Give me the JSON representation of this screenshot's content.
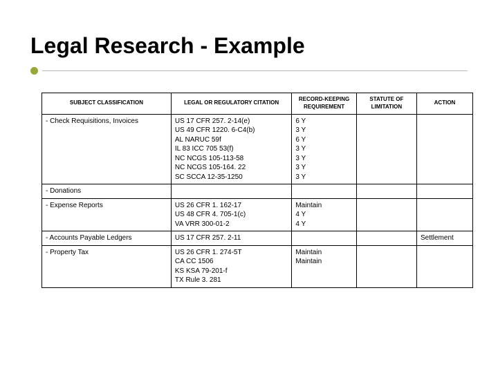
{
  "title": "Legal Research - Example",
  "accent_color": "#9aa83a",
  "underline_color": "#b8b8b8",
  "table": {
    "columns": [
      "SUBJECT CLASSIFICATION",
      "LEGAL OR REGULATORY CITATION",
      "RECORD-KEEPING REQUIREMENT",
      "STATUTE OF LIMITATION",
      "ACTION"
    ],
    "rows": [
      {
        "subject": "- Check Requisitions, Invoices",
        "citation": "US 17 CFR 257. 2-14(e)\nUS 49 CFR 1220. 6-C4(b)\nAL NARUC 59f\nIL 83 ICC 705 53(f)\nNC NCGS 105-113-58\nNC NCGS 105-164. 22\nSC SCCA 12-35-1250",
        "record": "6 Y\n3 Y\n6 Y\n3 Y\n3 Y\n3 Y\n3 Y",
        "statute": "",
        "action": ""
      },
      {
        "subject": "- Donations",
        "citation": "",
        "record": "",
        "statute": "",
        "action": ""
      },
      {
        "subject": "- Expense Reports",
        "citation": "US 26 CFR 1. 162-17\nUS 48 CFR 4. 705-1(c)\nVA VRR 300-01-2",
        "record": "Maintain\n4 Y\n4 Y",
        "statute": "",
        "action": ""
      },
      {
        "subject": "- Accounts Payable Ledgers",
        "citation": "US 17 CFR 257. 2-11",
        "record": "",
        "statute": "",
        "action": "Settlement"
      },
      {
        "subject": "- Property Tax",
        "citation": "US 26 CFR 1. 274-5T\nCA CC 1506\nKS KSA 79-201-f\nTX Rule 3. 281",
        "record": "Maintain\nMaintain",
        "statute": "",
        "action": ""
      }
    ]
  }
}
